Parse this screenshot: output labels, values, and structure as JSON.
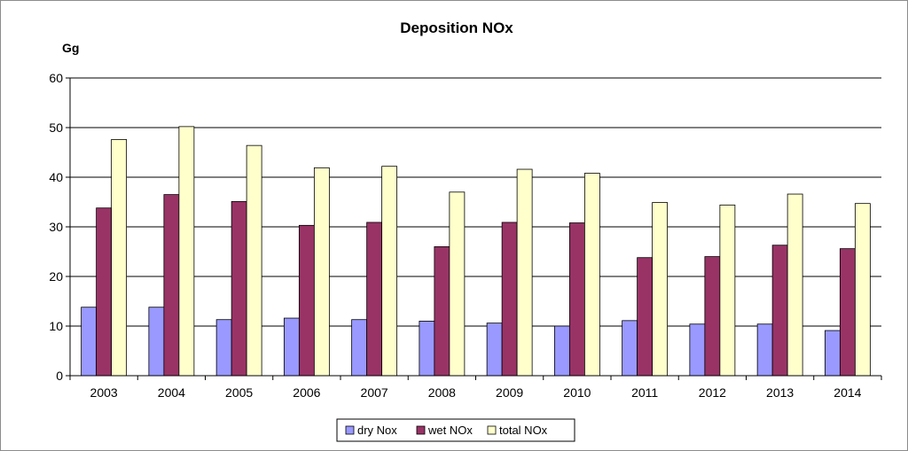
{
  "chart_data": {
    "type": "bar",
    "title": "Deposition NOx",
    "ylabel": "Gg",
    "xlabel": "",
    "ylim": [
      0,
      60
    ],
    "yticks": [
      0,
      10,
      20,
      30,
      40,
      50,
      60
    ],
    "grid": true,
    "legend_position": "bottom",
    "categories": [
      "2003",
      "2004",
      "2005",
      "2006",
      "2007",
      "2008",
      "2009",
      "2010",
      "2011",
      "2012",
      "2013",
      "2014"
    ],
    "series": [
      {
        "name": "dry Nox",
        "color": "#9999ff",
        "values": [
          13.8,
          13.8,
          11.3,
          11.6,
          11.3,
          11.0,
          10.6,
          10.0,
          11.1,
          10.4,
          10.4,
          9.1
        ]
      },
      {
        "name": "wet NOx",
        "color": "#993366",
        "values": [
          33.8,
          36.5,
          35.1,
          30.3,
          30.9,
          26.0,
          30.9,
          30.8,
          23.8,
          24.0,
          26.3,
          25.6
        ]
      },
      {
        "name": "total NOx",
        "color": "#ffffcc",
        "values": [
          47.6,
          50.2,
          46.4,
          41.9,
          42.2,
          37.0,
          41.6,
          40.8,
          34.9,
          34.4,
          36.6,
          34.7
        ]
      }
    ]
  }
}
